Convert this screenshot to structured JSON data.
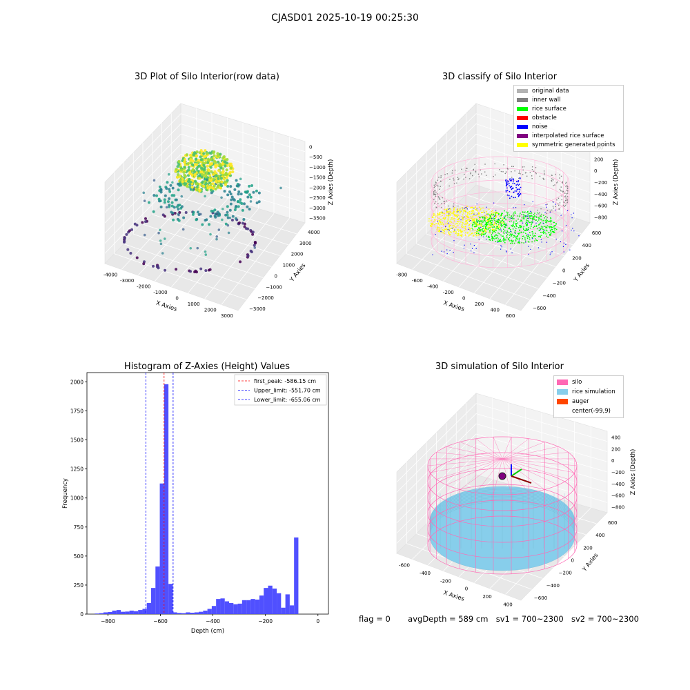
{
  "suptitle": "CJASD01 2025-10-19 00:25:30",
  "panel1": {
    "title": "3D Plot of Silo Interior(row data)",
    "xlabel": "X Axies",
    "ylabel": "Y Axies",
    "zlabel": "Z Axies (Depth)",
    "xticks": [
      "-4000",
      "-3000",
      "-2000",
      "-1000",
      "0",
      "1000",
      "2000",
      "3000"
    ],
    "yticks": [
      "4000",
      "3000",
      "2000",
      "1000",
      "0",
      "−1000",
      "−2000",
      "−3000"
    ],
    "zticks": [
      "0",
      "−500",
      "−1000",
      "−1500",
      "−2000",
      "−2500",
      "−3000",
      "−3500"
    ]
  },
  "panel2": {
    "title": "3D classify of Silo Interior",
    "xlabel": "X Axies",
    "ylabel": "Y Axies",
    "zlabel": "Z Axies (Depth)",
    "xticks": [
      "-800",
      "-600",
      "-400",
      "-200",
      "0",
      "200",
      "400",
      "600"
    ],
    "yticks": [
      "600",
      "400",
      "200",
      "0",
      "−200",
      "−400",
      "−600"
    ],
    "zticks": [
      "400",
      "200",
      "0",
      "−200",
      "−400",
      "−600",
      "−800"
    ],
    "legend": [
      {
        "label": "original data",
        "color": "#b3b3b3"
      },
      {
        "label": "inner wall",
        "color": "#808080"
      },
      {
        "label": "rice surface",
        "color": "#00ff00"
      },
      {
        "label": "obstacle",
        "color": "#ff0000"
      },
      {
        "label": "noise",
        "color": "#0000ff"
      },
      {
        "label": "interpolated rice surface",
        "color": "#800080"
      },
      {
        "label": "symmetric generated points",
        "color": "#ffff00"
      }
    ]
  },
  "panel3": {
    "footer": {
      "flag": "flag = 0",
      "avg": "avgDepth = 589 cm",
      "sv1": "sv1 = 700~2300",
      "sv2": "sv2 = 700~2300"
    }
  },
  "panel4": {
    "title": "3D simulation of Silo Interior",
    "xlabel": "X Axies",
    "ylabel": "Y Axies",
    "zlabel": "Z Axies (Depth)",
    "xticks": [
      "-600",
      "-400",
      "-200",
      "0",
      "200",
      "400"
    ],
    "yticks": [
      "600",
      "400",
      "200",
      "0",
      "−200",
      "−400",
      "−600"
    ],
    "zticks": [
      "400",
      "200",
      "0",
      "−200",
      "−400",
      "−600",
      "−800"
    ],
    "legend": [
      {
        "label": "silo",
        "color": "#ff69b4"
      },
      {
        "label": "rice simulation",
        "color": "#87ceeb"
      },
      {
        "label": "auger",
        "color": "#ff4500"
      },
      {
        "label": "center(-99,9)",
        "color": ""
      }
    ]
  },
  "chart_data": [
    {
      "type": "histogram",
      "title": "Histogram of Z-Axies (Height) Values",
      "xlabel": "Depth (cm)",
      "ylabel": "Frequency",
      "xlim": [
        -880,
        40
      ],
      "ylim": [
        0,
        2080
      ],
      "xticks": [
        -800,
        -600,
        -400,
        -200,
        0
      ],
      "yticks": [
        0,
        250,
        500,
        750,
        1000,
        1250,
        1500,
        1750,
        2000
      ],
      "bar_color": "#4d4dff",
      "bin_width": 16.5,
      "bins_start": -850,
      "counts": [
        5,
        8,
        15,
        18,
        30,
        35,
        20,
        22,
        30,
        25,
        35,
        45,
        95,
        225,
        410,
        1125,
        1980,
        260,
        15,
        10,
        8,
        15,
        12,
        15,
        20,
        30,
        45,
        70,
        130,
        135,
        110,
        95,
        85,
        90,
        120,
        120,
        130,
        125,
        160,
        225,
        245,
        220,
        180,
        55,
        170,
        75,
        660
      ],
      "lines": [
        {
          "label": "first_peak: -586.15 cm",
          "x": -586.15,
          "color": "#ff0000"
        },
        {
          "label": "Upper_limit: -551.70 cm",
          "x": -551.7,
          "color": "#0000ff"
        },
        {
          "label": "Lower_limit: -655.06 cm",
          "x": -655.06,
          "color": "#0000ff"
        }
      ]
    }
  ]
}
